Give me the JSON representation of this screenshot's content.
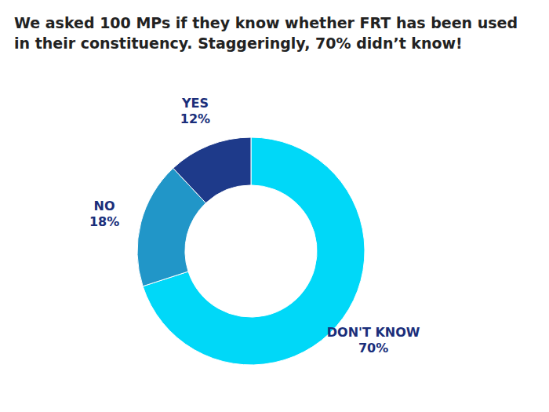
{
  "chart_data": {
    "type": "donut",
    "title": "We asked 100 MPs if they know whether FRT has been used",
    "subtitle": "in their constituency. Staggeringly, 70% didn’t know!",
    "categories": [
      "DON'T KNOW",
      "NO",
      "YES"
    ],
    "values": [
      70,
      18,
      12
    ],
    "value_labels": [
      "70%",
      "18%",
      "12%"
    ],
    "colors": [
      "#00d8f8",
      "#2196c8",
      "#1e3a8a"
    ],
    "data_labels": true
  }
}
